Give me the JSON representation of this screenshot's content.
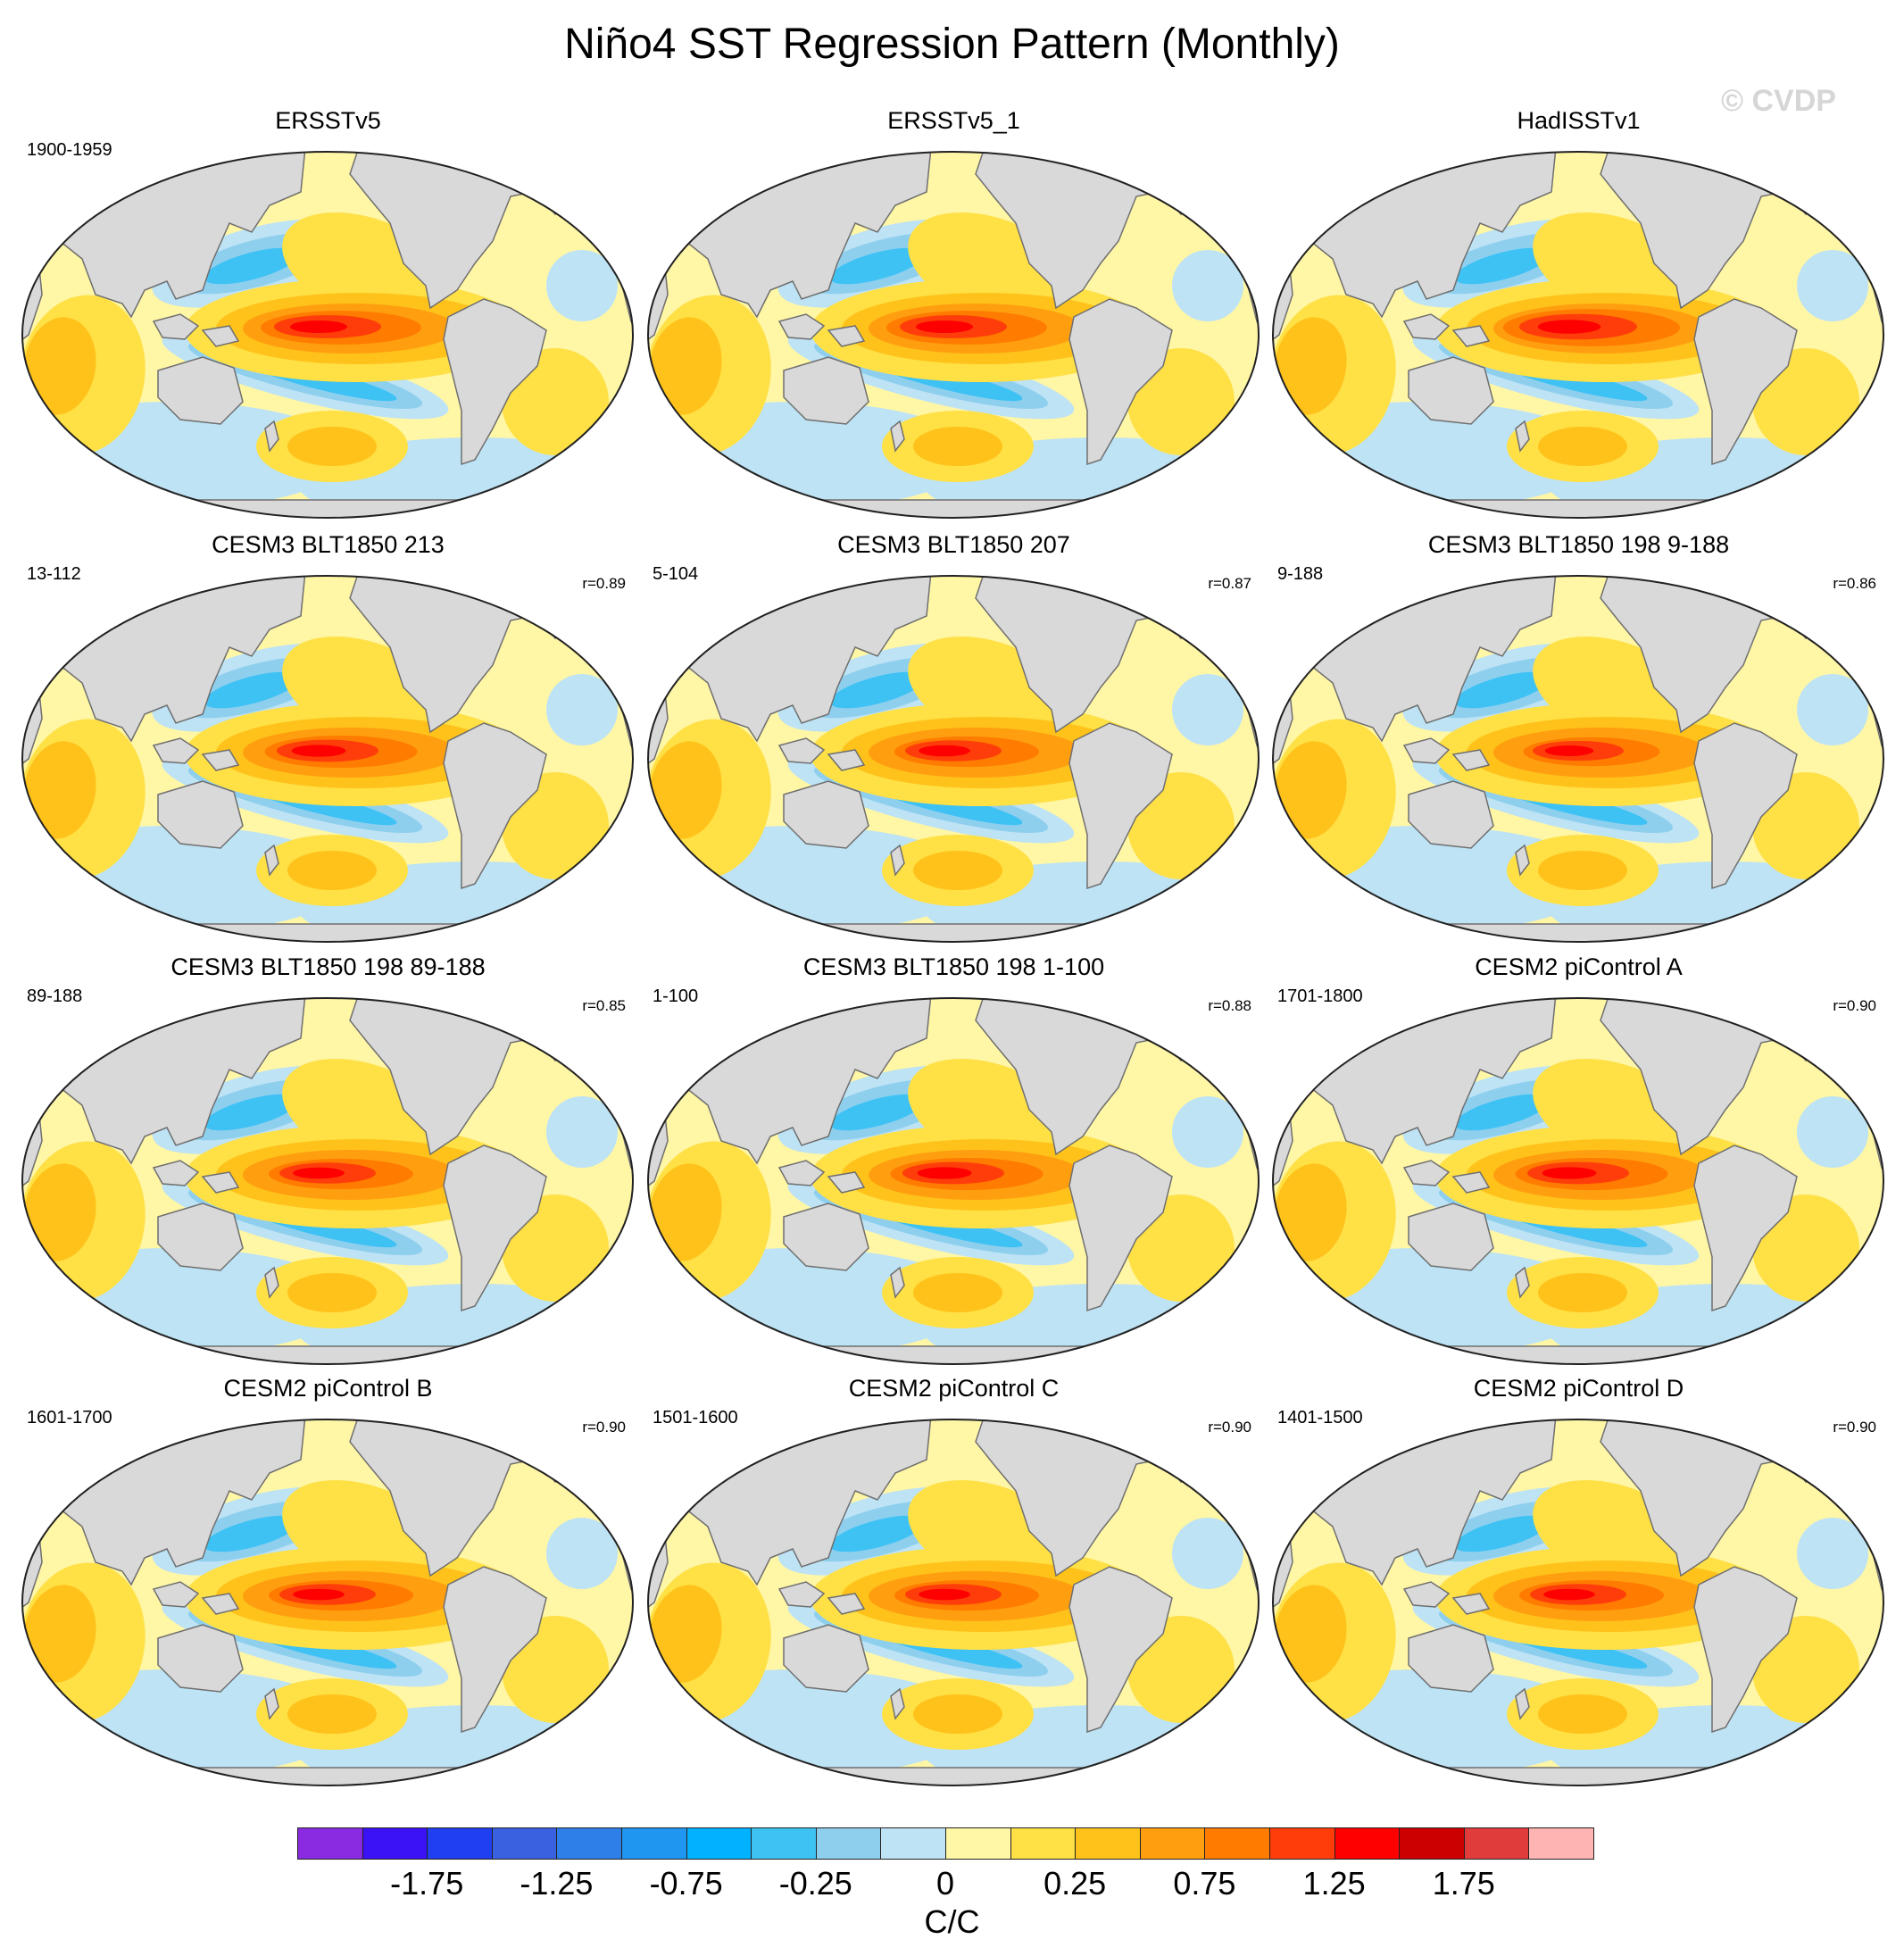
{
  "title": "Niño4 SST Regression Pattern (Monthly)",
  "watermark": "© CVDP",
  "panels": [
    {
      "title": "ERSSTv5",
      "period": "1900-1959",
      "corr": "",
      "scale": 1.0
    },
    {
      "title": "ERSSTv5_1",
      "period": "",
      "corr": "",
      "scale": 1.0
    },
    {
      "title": "HadISSTv1",
      "period": "",
      "corr": "",
      "scale": 1.1
    },
    {
      "title": "CESM3 BLT1850 213",
      "period": "13-112",
      "corr": "r=0.89",
      "scale": 0.95
    },
    {
      "title": "CESM3 BLT1850 207",
      "period": "5-104",
      "corr": "r=0.87",
      "scale": 0.9
    },
    {
      "title": "CESM3 BLT1850 198 9-188",
      "period": "9-188",
      "corr": "r=0.86",
      "scale": 0.85
    },
    {
      "title": "CESM3 BLT1850 198 89-188",
      "period": "89-188",
      "corr": "r=0.85",
      "scale": 0.9
    },
    {
      "title": "CESM3 BLT1850 198 1-100",
      "period": "1-100",
      "corr": "r=0.88",
      "scale": 0.95
    },
    {
      "title": "CESM2 piControl A",
      "period": "1701-1800",
      "corr": "r=0.90",
      "scale": 0.95
    },
    {
      "title": "CESM2 piControl B",
      "period": "1601-1700",
      "corr": "r=0.90",
      "scale": 0.9
    },
    {
      "title": "CESM2 piControl C",
      "period": "1501-1600",
      "corr": "r=0.90",
      "scale": 0.9
    },
    {
      "title": "CESM2 piControl D",
      "period": "1401-1500",
      "corr": "r=0.90",
      "scale": 0.9
    }
  ],
  "colorbar": {
    "units": "C/C",
    "colors": [
      "#8a2be2",
      "#3a12f5",
      "#1f3ff0",
      "#3a62e0",
      "#2f7fe8",
      "#1f96f0",
      "#00b2ff",
      "#3ec2f4",
      "#8fcfee",
      "#bde3f5",
      "#fff6a6",
      "#ffe045",
      "#ffc21a",
      "#ff9f0f",
      "#ff7c00",
      "#ff3d0a",
      "#ff0000",
      "#cc0000",
      "#e03c3c",
      "#ffb4b4"
    ],
    "labels": [
      "-1.75",
      "-1.25",
      "-0.75",
      "-0.25",
      "0",
      "0.25",
      "0.75",
      "1.25",
      "1.75"
    ]
  }
}
